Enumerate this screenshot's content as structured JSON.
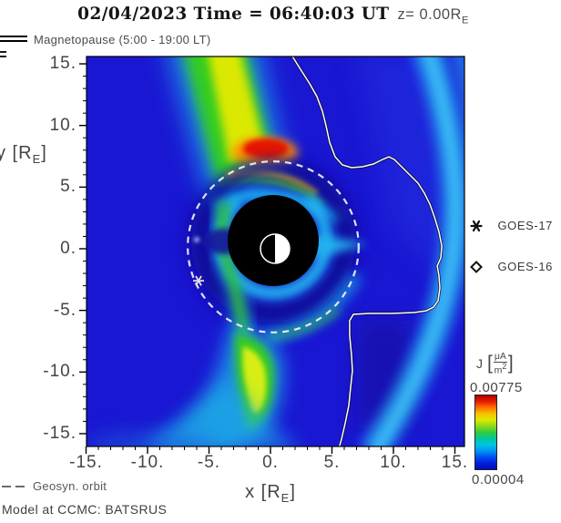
{
  "header": {
    "title_main": "02/04/2023 Time = 06:40:03 UT",
    "title_z_pre": "z= 0.00R",
    "title_z_sub": "E"
  },
  "legends": {
    "magnetopause": "Magnetopause (5:00 - 19:00 LT)",
    "geosync": "Geosyn. orbit",
    "model_credit": "Model at CCMC: BATSRUS",
    "satellites": [
      {
        "name": "GOES-17"
      },
      {
        "name": "GOES-16"
      }
    ]
  },
  "axes": {
    "x_label_pre": "x [R",
    "x_label_sub": "E",
    "x_label_post": "]",
    "y_label_pre": "y [R",
    "y_label_sub": "E",
    "y_label_post": "]"
  },
  "chart_data": {
    "type": "heatmap",
    "title": "02/04/2023 Time = 06:40:03 UT z= 0.00 RE",
    "xlabel": "x [RE]",
    "ylabel": "y [RE]",
    "xlim": [
      -15,
      15
    ],
    "ylim": [
      -15,
      15
    ],
    "grid": false,
    "x_ticks": {
      "values": [
        -15,
        -10,
        -5,
        0,
        5,
        10,
        15
      ],
      "labels": [
        "-15.",
        "-10.",
        "-5.",
        "0.",
        "5.",
        "10.",
        "15."
      ],
      "minor_step": 1
    },
    "y_ticks": {
      "values": [
        15,
        10,
        5,
        0,
        -5,
        -10,
        -15
      ],
      "labels": [
        "15.",
        "10.",
        "5.",
        "0.",
        "-5.",
        "-10.",
        "-15."
      ],
      "minor_step": 1
    },
    "colorbar": {
      "quantity": "J",
      "unit_num": "μA",
      "unit_den": "m",
      "unit_den_exp": "2",
      "units": "μA/m2",
      "max": "0.00775",
      "min": "0.00004",
      "stops": [
        "#b40000",
        "#e41e00",
        "#ff7200",
        "#f7c400",
        "#dce800",
        "#8cd81c",
        "#30cc3c",
        "#00c896",
        "#00c4e4",
        "#0096f4",
        "#0050f0",
        "#0020dc",
        "#000cb6"
      ]
    },
    "overlays": {
      "magnetopause": {
        "label": "Magnetopause (5:00 - 19:00 LT)",
        "points_re": [
          [
            1.7,
            15.74
          ],
          [
            2.44,
            14.56
          ],
          [
            3.19,
            13.38
          ],
          [
            3.78,
            12.34
          ],
          [
            4.22,
            11.16
          ],
          [
            4.52,
            9.98
          ],
          [
            4.81,
            8.65
          ],
          [
            5.26,
            7.46
          ],
          [
            5.85,
            6.8
          ],
          [
            6.59,
            6.58
          ],
          [
            7.48,
            6.65
          ],
          [
            8.37,
            6.87
          ],
          [
            9.11,
            7.24
          ],
          [
            9.63,
            7.46
          ],
          [
            10.07,
            7.24
          ],
          [
            10.67,
            6.65
          ],
          [
            11.33,
            5.99
          ],
          [
            12.0,
            5.32
          ],
          [
            12.52,
            4.51
          ],
          [
            12.96,
            3.62
          ],
          [
            13.33,
            2.59
          ],
          [
            13.7,
            1.4
          ],
          [
            13.93,
            0.22
          ],
          [
            13.85,
            -0.74
          ],
          [
            13.56,
            -1.4
          ],
          [
            13.7,
            -2.14
          ],
          [
            13.78,
            -3.18
          ],
          [
            13.63,
            -4.21
          ],
          [
            13.26,
            -4.73
          ],
          [
            12.67,
            -5.03
          ],
          [
            11.7,
            -5.17
          ],
          [
            9.85,
            -5.25
          ],
          [
            8.0,
            -5.25
          ],
          [
            6.74,
            -5.32
          ],
          [
            6.44,
            -5.84
          ],
          [
            6.44,
            -7.02
          ],
          [
            6.59,
            -8.65
          ],
          [
            6.67,
            -9.9
          ],
          [
            6.52,
            -11.23
          ],
          [
            6.37,
            -12.71
          ],
          [
            6.07,
            -14.19
          ],
          [
            5.78,
            -15.45
          ],
          [
            5.56,
            -16.19
          ]
        ]
      },
      "geosync_orbit": {
        "label": "Geosyn. orbit",
        "center_re": [
          0.22,
          0.15
        ],
        "radius_re": 6.95
      },
      "earth": {
        "center_re": [
          0.37,
          0.0
        ],
        "dayside": "right"
      },
      "satellites": [
        {
          "name": "GOES-17",
          "symbol": "asterisk",
          "position_re": [
            -5.85,
            -2.6
          ],
          "plotted": true
        },
        {
          "name": "GOES-16",
          "symbol": "diamond",
          "plotted": false
        }
      ]
    },
    "model": "BATSRUS",
    "notes": "Equatorial-plane current density magnitude J; red maximum near (0,7.5) RE, arcs ringing the inner boundary, yellow-green tail current band toward (-2,-12) RE, cyan bow-shock band on the +x flank, white magnetopause trace, dashed geosynchronous orbit circle"
  }
}
